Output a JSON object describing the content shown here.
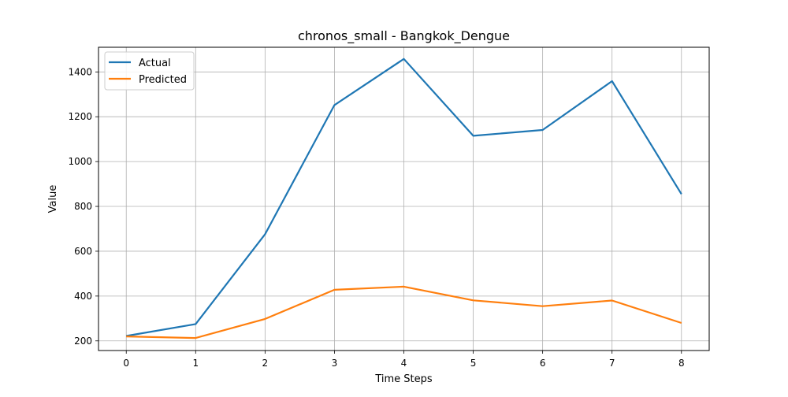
{
  "chart_data": {
    "type": "line",
    "title": "chronos_small - Bangkok_Dengue",
    "xlabel": "Time Steps",
    "ylabel": "Value",
    "x": [
      0,
      1,
      2,
      3,
      4,
      5,
      6,
      7,
      8
    ],
    "xlim": [
      -0.4,
      8.4
    ],
    "ylim": [
      157,
      1510
    ],
    "xticks": [
      "0",
      "1",
      "2",
      "3",
      "4",
      "5",
      "6",
      "7",
      "8"
    ],
    "yticks": [
      "200",
      "400",
      "600",
      "800",
      "1000",
      "1200",
      "1400"
    ],
    "grid": true,
    "legend_position": "top-left",
    "series": [
      {
        "name": "Actual",
        "color": "#1f77b4",
        "values": [
          222,
          275,
          676,
          1252,
          1458,
          1115,
          1141,
          1359,
          855
        ]
      },
      {
        "name": "Predicted",
        "color": "#ff7f0e",
        "values": [
          220,
          213,
          298,
          428,
          442,
          381,
          355,
          380,
          280
        ]
      }
    ]
  }
}
